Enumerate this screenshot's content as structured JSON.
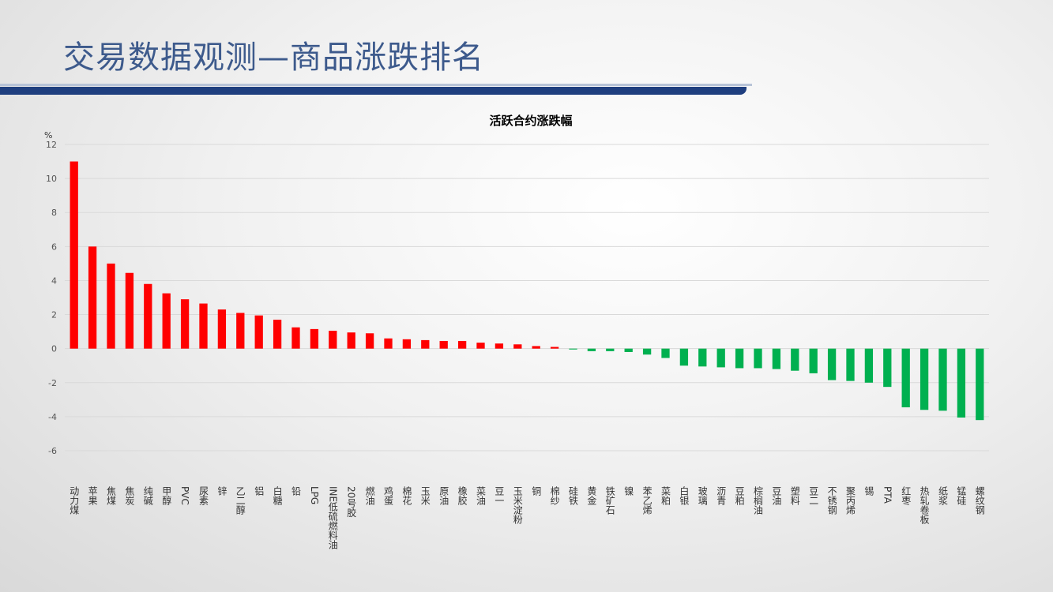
{
  "title": "交易数据观测—商品涨跌排名",
  "chart_data": {
    "type": "bar",
    "title": "活跃合约涨跌幅",
    "y_unit": "%",
    "categories": [
      "动力煤",
      "苹果",
      "焦煤",
      "焦炭",
      "纯碱",
      "甲醇",
      "PVC",
      "尿素",
      "锌",
      "乙二醇",
      "铝",
      "白糖",
      "铅",
      "LPG",
      "INE低硫燃料油",
      "20号胶",
      "燃油",
      "鸡蛋",
      "棉花",
      "玉米",
      "原油",
      "橡胶",
      "菜油",
      "豆一",
      "玉米淀粉",
      "铜",
      "棉纱",
      "硅铁",
      "黄金",
      "铁矿石",
      "镍",
      "苯乙烯",
      "菜粕",
      "白银",
      "玻璃",
      "沥青",
      "豆粕",
      "棕榈油",
      "豆油",
      "塑料",
      "豆二",
      "不锈钢",
      "聚丙烯",
      "锡",
      "PTA",
      "红枣",
      "热轧卷板",
      "纸浆",
      "锰硅",
      "螺纹钢"
    ],
    "values": [
      11.0,
      6.0,
      5.0,
      4.45,
      3.8,
      3.25,
      2.9,
      2.65,
      2.3,
      2.1,
      1.95,
      1.7,
      1.25,
      1.15,
      1.05,
      0.95,
      0.9,
      0.6,
      0.55,
      0.5,
      0.45,
      0.45,
      0.35,
      0.3,
      0.25,
      0.15,
      0.1,
      -0.05,
      -0.15,
      -0.15,
      -0.2,
      -0.35,
      -0.55,
      -1.0,
      -1.05,
      -1.1,
      -1.15,
      -1.15,
      -1.2,
      -1.3,
      -1.45,
      -1.85,
      -1.9,
      -2.0,
      -2.25,
      -3.45,
      -3.6,
      -3.65,
      -4.05,
      -4.2
    ],
    "positive_color": "#ff0000",
    "negative_color": "#00b050",
    "ylim": [
      -6,
      12
    ],
    "yticks": [
      -6,
      -4,
      -2,
      0,
      2,
      4,
      6,
      8,
      10,
      12
    ],
    "grid": true
  }
}
